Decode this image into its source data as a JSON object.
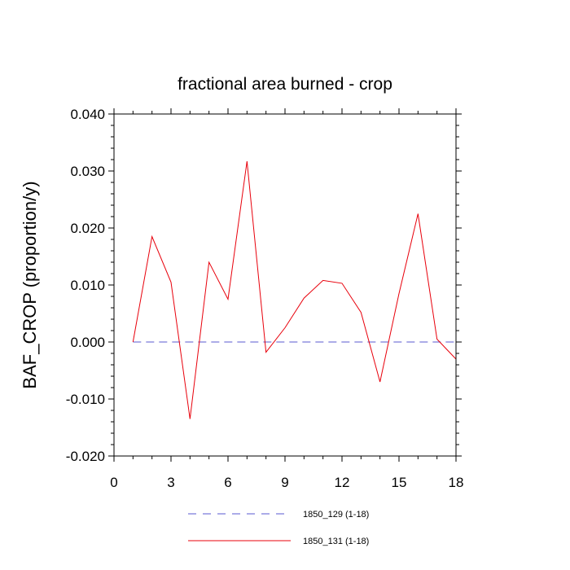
{
  "chart_data": {
    "type": "line",
    "title": "fractional area burned - crop",
    "xlabel": "",
    "ylabel": "BAF_CROP  (proportion/y)",
    "xlim": [
      0,
      18
    ],
    "ylim": [
      -0.02,
      0.04
    ],
    "x_ticks": [
      0,
      3,
      6,
      9,
      12,
      15,
      18
    ],
    "x_tick_labels": [
      "0",
      "3",
      "6",
      "9",
      "12",
      "15",
      "18"
    ],
    "y_ticks": [
      -0.02,
      -0.01,
      0.0,
      0.01,
      0.02,
      0.03,
      0.04
    ],
    "y_tick_labels": [
      "-0.020",
      "-0.010",
      "0.000",
      "0.010",
      "0.020",
      "0.030",
      "0.040"
    ],
    "grid": false,
    "legend_position": "bottom",
    "series": [
      {
        "name": "1850_129 (1-18)",
        "color": "#7b7bd9",
        "style": "dashed",
        "x": [
          1,
          2,
          3,
          4,
          5,
          6,
          7,
          8,
          9,
          10,
          11,
          12,
          13,
          14,
          15,
          16,
          17,
          18
        ],
        "y": [
          0,
          0,
          0,
          0,
          0,
          0,
          0,
          0,
          0,
          0,
          0,
          0,
          0,
          0,
          0,
          0,
          0,
          0
        ]
      },
      {
        "name": "1850_131 (1-18)",
        "color": "#e8000b",
        "style": "solid",
        "x": [
          1,
          2,
          3,
          4,
          5,
          6,
          7,
          8,
          9,
          10,
          11,
          12,
          13,
          14,
          15,
          16,
          17,
          18
        ],
        "y": [
          0.0,
          0.0185,
          0.0105,
          -0.0135,
          0.014,
          0.0075,
          0.0317,
          -0.0018,
          0.0025,
          0.0077,
          0.0108,
          0.0103,
          0.0052,
          -0.007,
          0.0085,
          0.0225,
          0.0005,
          -0.003
        ]
      }
    ]
  }
}
